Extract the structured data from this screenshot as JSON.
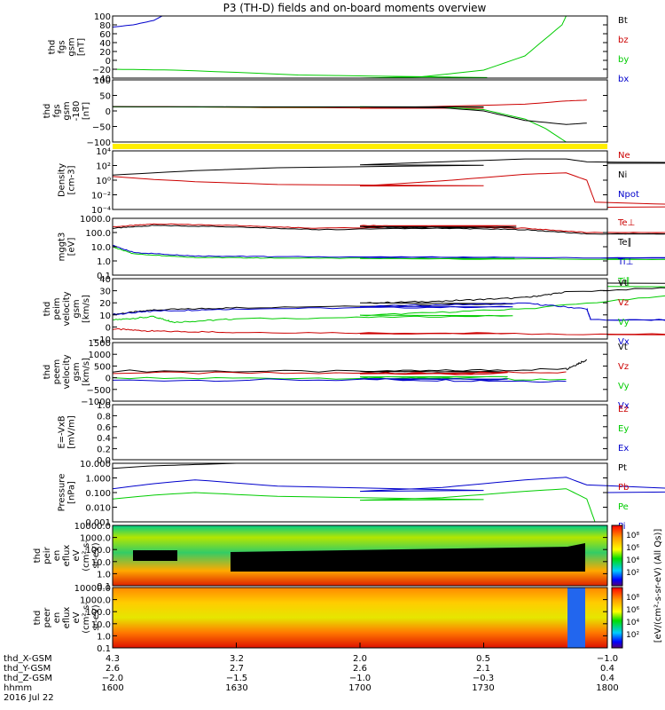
{
  "title": "P3 (TH-D) fields and on-board moments overview",
  "chart_data": [
    {
      "type": "line",
      "ylabel": [
        "thd",
        "fgs",
        "gsm",
        "[nT]"
      ],
      "yticks": [
        "100",
        "80",
        "60",
        "40",
        "20",
        "0",
        "−20",
        "−40"
      ],
      "ylim": [
        -40,
        100
      ],
      "legend": [
        "Bt",
        "bz",
        "by",
        "bx"
      ],
      "series": [
        {
          "name": "bx",
          "color": "#0000cc",
          "x": [
            1600,
            1605,
            1610,
            1612
          ],
          "y": [
            75,
            80,
            90,
            100
          ]
        },
        {
          "name": "by",
          "color": "#00cc00",
          "x": [
            1600,
            1615,
            1630,
            1645,
            1700,
            1715,
            1730,
            1740,
            1749,
            1750
          ],
          "y": [
            -20,
            -22,
            -27,
            -33,
            -40,
            -37,
            -22,
            10,
            80,
            100
          ]
        }
      ]
    },
    {
      "type": "line",
      "ylabel": [
        "thd",
        "fgs",
        "gsm",
        "-180",
        "[nT]"
      ],
      "yticks": [
        "100",
        "50",
        "0",
        "−50",
        "−100"
      ],
      "ylim": [
        -130,
        100
      ],
      "legend": [],
      "series": [
        {
          "name": "bz",
          "color": "#cc0000",
          "x": [
            1600,
            1620,
            1640,
            1700,
            1720,
            1740,
            1750,
            1755
          ],
          "y": [
            1,
            0,
            -3,
            -5,
            2,
            10,
            22,
            25
          ]
        },
        {
          "name": "by",
          "color": "#00cc00",
          "x": [
            1600,
            1640,
            1700,
            1720,
            1730,
            1740,
            1745,
            1750
          ],
          "y": [
            0,
            -1,
            0,
            -2,
            -10,
            -45,
            -80,
            -130
          ]
        },
        {
          "name": "Bt",
          "color": "#000000",
          "x": [
            1600,
            1640,
            1700,
            1720,
            1730,
            1740,
            1750,
            1755
          ],
          "y": [
            1,
            0,
            0,
            -3,
            -15,
            -50,
            -65,
            -60
          ]
        }
      ]
    },
    {
      "type": "line",
      "scale": "log",
      "ylabel": [
        "Density",
        "[cm-3]"
      ],
      "yticks": [
        "10⁴",
        "10²",
        "10⁰",
        "10⁻²",
        "10⁻⁴"
      ],
      "ylim": [
        -4,
        4
      ],
      "legend": [
        "Ne",
        "Ni",
        "Npot"
      ],
      "series": [
        {
          "name": "Ni",
          "color": "#000000",
          "x": [
            1600,
            1620,
            1640,
            1700,
            1720,
            1740,
            1750,
            1755,
            1800
          ],
          "y": [
            0.7,
            1.3,
            1.7,
            2.1,
            2.5,
            2.9,
            2.9,
            2.5,
            2.3
          ]
        },
        {
          "name": "Ne",
          "color": "#cc0000",
          "x": [
            1600,
            1610,
            1620,
            1640,
            1700,
            1720,
            1740,
            1750,
            1755,
            1757,
            1800
          ],
          "y": [
            0.5,
            0.1,
            -0.2,
            -0.6,
            -0.8,
            -0.1,
            0.8,
            1.0,
            0.0,
            -3.0,
            -3.7
          ]
        }
      ]
    },
    {
      "type": "line",
      "scale": "log",
      "ylabel": [
        "mggt3",
        "[eV]"
      ],
      "yticks": [
        "1000.0",
        "100.0",
        "10.0",
        "1.0",
        "0.1"
      ],
      "ylim": [
        -1,
        3
      ],
      "legend": [
        "Te⊥",
        "Te∥",
        "Ti⊥",
        "Ti∥"
      ],
      "series": [
        {
          "name": "Te⊥",
          "color": "#cc0000",
          "x": [
            1600,
            1610,
            1630,
            1650,
            1700,
            1720,
            1740,
            1755,
            1800
          ],
          "y": [
            2.4,
            2.6,
            2.5,
            2.3,
            2.5,
            2.4,
            2.3,
            2.0,
            2.0
          ]
        },
        {
          "name": "Te∥",
          "color": "#000000",
          "x": [
            1600,
            1610,
            1630,
            1650,
            1700,
            1720,
            1740,
            1755,
            1800
          ],
          "y": [
            2.3,
            2.5,
            2.4,
            2.2,
            2.4,
            2.3,
            2.2,
            1.9,
            1.9
          ]
        },
        {
          "name": "Ti⊥",
          "color": "#0000cc",
          "x": [
            1600,
            1605,
            1620,
            1640,
            1700,
            1800
          ],
          "y": [
            1.1,
            0.6,
            0.35,
            0.3,
            0.25,
            0.2
          ]
        },
        {
          "name": "Ti∥",
          "color": "#00cc00",
          "x": [
            1600,
            1605,
            1620,
            1640,
            1700,
            1800
          ],
          "y": [
            1.0,
            0.5,
            0.25,
            0.2,
            0.15,
            0.1
          ]
        }
      ]
    },
    {
      "type": "line",
      "ylabel": [
        "thd",
        "peim",
        "velocity",
        "gsm",
        "[km/s]"
      ],
      "yticks": [
        "40",
        "30",
        "20",
        "10",
        "0",
        "−10"
      ],
      "ylim": [
        -12,
        42
      ],
      "legend": [
        "Vt",
        "Vz",
        "Vy",
        "Vx"
      ],
      "series": [
        {
          "name": "Vt",
          "color": "#000000",
          "x": [
            1600,
            1610,
            1630,
            1700,
            1720,
            1740,
            1750,
            1800
          ],
          "y": [
            10,
            14,
            16,
            20,
            22,
            25,
            30,
            38
          ]
        },
        {
          "name": "Vz",
          "color": "#cc0000",
          "x": [
            1600,
            1610,
            1630,
            1700,
            1800
          ],
          "y": [
            -3,
            -5,
            -6,
            -7,
            -8
          ]
        },
        {
          "name": "Vy",
          "color": "#00cc00",
          "x": [
            1600,
            1610,
            1615,
            1630,
            1700,
            1740,
            1800
          ],
          "y": [
            5,
            8,
            3,
            6,
            9,
            15,
            35
          ]
        },
        {
          "name": "Vx",
          "color": "#0000cc",
          "x": [
            1600,
            1610,
            1630,
            1700,
            1740,
            1755,
            1756,
            1800
          ],
          "y": [
            10,
            13,
            15,
            17,
            20,
            15,
            5,
            5
          ]
        }
      ]
    },
    {
      "type": "line",
      "ylabel": [
        "thd",
        "peem",
        "velocity",
        "gsm",
        "[km/s]"
      ],
      "yticks": [
        "1500",
        "1000",
        "500",
        "0",
        "−500",
        "−1000"
      ],
      "ylim": [
        -1400,
        1700
      ],
      "legend": [
        "Vt",
        "Vz",
        "Vy",
        "Vx"
      ],
      "series": [
        {
          "name": "Vt",
          "color": "#000000",
          "x": [
            1600,
            1700,
            1750,
            1755
          ],
          "y": [
            200,
            150,
            300,
            800
          ]
        },
        {
          "name": "Vz",
          "color": "#cc0000",
          "x": [
            1600,
            1700,
            1750
          ],
          "y": [
            100,
            50,
            150
          ]
        },
        {
          "name": "Vy",
          "color": "#00cc00",
          "x": [
            1600,
            1700,
            1750
          ],
          "y": [
            -200,
            -150,
            -250
          ]
        },
        {
          "name": "Vx",
          "color": "#0000cc",
          "x": [
            1600,
            1700,
            1750
          ],
          "y": [
            -300,
            -250,
            -350
          ]
        }
      ]
    },
    {
      "type": "line",
      "ylabel": [
        "E=-VxB",
        "[mV/m]"
      ],
      "yticks": [
        "1.0",
        "0.8",
        "0.6",
        "0.4",
        "0.2",
        "0.0"
      ],
      "ylim": [
        0,
        1
      ],
      "legend": [
        "Ez",
        "Ey",
        "Ex"
      ],
      "series": []
    },
    {
      "type": "line",
      "scale": "log",
      "ylabel": [
        "Pressure",
        "[nPa]"
      ],
      "yticks": [
        "10.000",
        "1.000",
        "0.100",
        "0.010",
        "0.001"
      ],
      "ylim": [
        -3.3,
        1.3
      ],
      "legend": [
        "Pt",
        "Pb",
        "Pe",
        "Pi"
      ],
      "series": [
        {
          "name": "Pt",
          "color": "#000000",
          "x": [
            1600,
            1610,
            1620,
            1630
          ],
          "y": [
            0.9,
            1.1,
            1.2,
            1.3
          ]
        },
        {
          "name": "Pi",
          "color": "#0000cc",
          "x": [
            1600,
            1610,
            1620,
            1640,
            1700,
            1720,
            1740,
            1750,
            1755,
            1800
          ],
          "y": [
            -0.7,
            -0.3,
            0.0,
            -0.5,
            -0.9,
            -0.6,
            0.0,
            0.2,
            -0.4,
            -1.0
          ]
        },
        {
          "name": "Pe",
          "color": "#00cc00",
          "x": [
            1600,
            1610,
            1620,
            1640,
            1700,
            1720,
            1740,
            1750,
            1755,
            1757
          ],
          "y": [
            -1.5,
            -1.2,
            -1.0,
            -1.3,
            -1.6,
            -1.4,
            -0.9,
            -0.7,
            -1.5,
            -3.3
          ]
        }
      ]
    },
    {
      "type": "heatmap",
      "ylabel": [
        "thd",
        "peir",
        "en",
        "eflux",
        "eV",
        "(cm²-s-",
        "sr-eV)"
      ],
      "yticks": [
        "10000.0",
        "1000.0",
        "100.0",
        "10.0",
        "1.0",
        "0.1"
      ],
      "colorbar_ticks": [
        "10⁸",
        "10⁶",
        "10⁴",
        "10²"
      ]
    },
    {
      "type": "heatmap",
      "ylabel": [
        "thd",
        "peer",
        "en",
        "eflux",
        "eV",
        "(cm²-s-",
        "sr-eV)"
      ],
      "yticks": [
        "10000.0",
        "1000.0",
        "100.0",
        "10.0",
        "1.0",
        "0.1"
      ],
      "colorbar_ticks": [
        "10⁸",
        "10⁶",
        "10⁴",
        "10²"
      ]
    }
  ],
  "axis": {
    "rows": [
      {
        "label": "thd_X-GSM",
        "values": [
          "4.3",
          "3.2",
          "2.0",
          "0.5",
          "−1.0"
        ]
      },
      {
        "label": "thd_Y-GSM",
        "values": [
          "2.6",
          "2.7",
          "2.6",
          "2.1",
          "0.4"
        ]
      },
      {
        "label": "thd_Z-GSM",
        "values": [
          "−2.0",
          "−1.5",
          "−1.0",
          "−0.3",
          "0.4"
        ]
      },
      {
        "label": "hhmm",
        "values": [
          "1600",
          "1630",
          "1700",
          "1730",
          "1800"
        ]
      }
    ],
    "date": "2016 Jul 22",
    "colorbar_label": "[eV/(cm²-s-sr-eV) (All Qs)]"
  },
  "colors": {
    "black": "#000000",
    "red": "#cc0000",
    "green": "#00cc00",
    "blue": "#0000cc",
    "yellow": "#ffee00"
  }
}
